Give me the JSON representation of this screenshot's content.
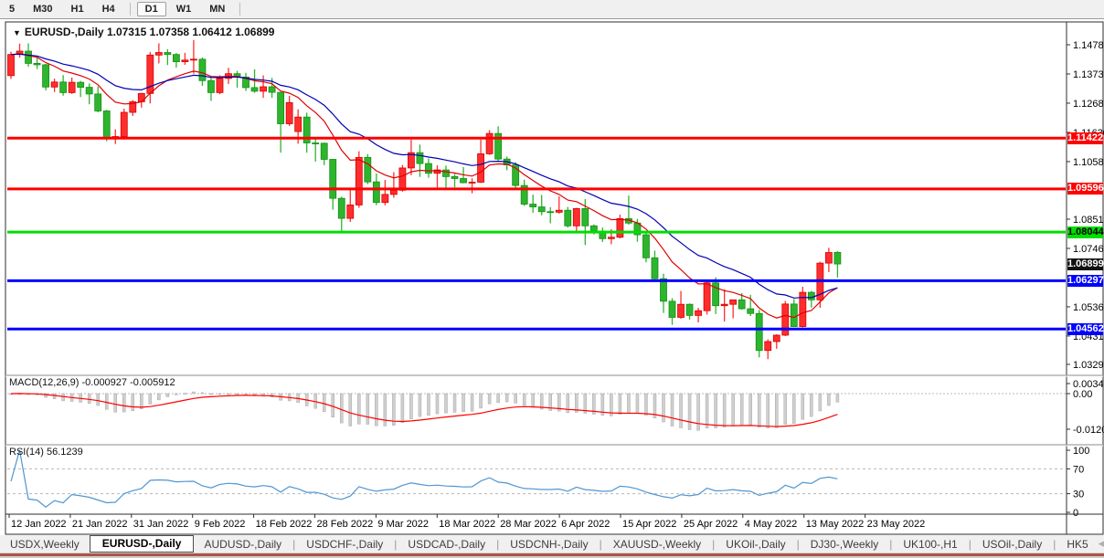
{
  "toolbar": {
    "timeframes": [
      "5",
      "M30",
      "H1",
      "H4",
      "D1",
      "W1",
      "MN"
    ],
    "active": "D1"
  },
  "chart": {
    "collapse_icon": "▼",
    "title_symbol": "EURUSD-,Daily",
    "title_ohlc": "1.07315 1.07358 1.06412 1.06899"
  },
  "chart_data": {
    "type": "candlestick",
    "symbol": "EURUSD-,Daily",
    "title": "EURUSD-,Daily",
    "current_ohlc": {
      "open": 1.07315,
      "high": 1.07358,
      "low": 1.06412,
      "close": 1.06899
    },
    "up_color": "#ff2e2e",
    "down_color": "#2eb52e",
    "y_axis_ticks": [
      1.1478,
      1.1373,
      1.1268,
      1.1163,
      1.1058,
      1.0851,
      1.0746,
      1.0536,
      1.0431,
      1.0329
    ],
    "x_axis_labels": [
      "12 Jan 2022",
      "21 Jan 2022",
      "31 Jan 2022",
      "9 Feb 2022",
      "18 Feb 2022",
      "28 Feb 2022",
      "9 Mar 2022",
      "18 Mar 2022",
      "28 Mar 2022",
      "6 Apr 2022",
      "15 Apr 2022",
      "25 Apr 2022",
      "4 May 2022",
      "13 May 2022",
      "23 May 2022"
    ],
    "levels": [
      {
        "price": 1.11422,
        "color": "#ff0000",
        "badge_bg": "#ff0000",
        "badge_fg": "#ffffff"
      },
      {
        "price": 1.09596,
        "color": "#ff0000",
        "badge_bg": "#ff0000",
        "badge_fg": "#ffffff"
      },
      {
        "price": 1.08044,
        "color": "#00dd00",
        "badge_bg": "#00dd00",
        "badge_fg": "#000000"
      },
      {
        "price": 1.06297,
        "color": "#0000ff",
        "badge_bg": "#0000ff",
        "badge_fg": "#ffffff"
      },
      {
        "price": 1.04562,
        "color": "#0000ff",
        "badge_bg": "#0000ff",
        "badge_fg": "#ffffff"
      }
    ],
    "current_price_badge": {
      "price": 1.06899,
      "badge_bg": "#111111",
      "badge_fg": "#ffffff"
    },
    "moving_averages": [
      {
        "period": 10,
        "color": "#e00000"
      },
      {
        "period": 20,
        "color": "#0000b4"
      }
    ],
    "macd": {
      "label": "MACD(12,26,9)",
      "values": "-0.000927 -0.005912",
      "fast": 12,
      "slow": 26,
      "signal_period": 9,
      "axis_ticks": [
        0.003408,
        0,
        -0.012058
      ],
      "bar_color": "#cfcfcf",
      "signal_color": "#ff0000"
    },
    "rsi": {
      "label": "RSI(14)",
      "value": "56.1239",
      "period": 14,
      "axis_ticks": [
        100,
        70,
        30,
        0
      ],
      "guide_levels": [
        70,
        30
      ],
      "line_color": "#4f96d2"
    },
    "candles": [
      [
        1.1367,
        1.1453,
        1.1355,
        1.1443
      ],
      [
        1.1443,
        1.1482,
        1.1432,
        1.1455
      ],
      [
        1.1455,
        1.1483,
        1.1399,
        1.1411
      ],
      [
        1.1411,
        1.1435,
        1.1391,
        1.1406
      ],
      [
        1.1406,
        1.1409,
        1.1314,
        1.1326
      ],
      [
        1.1326,
        1.1356,
        1.1308,
        1.1344
      ],
      [
        1.1344,
        1.1369,
        1.1295,
        1.1306
      ],
      [
        1.1306,
        1.136,
        1.1301,
        1.1343
      ],
      [
        1.1343,
        1.1348,
        1.129,
        1.1325
      ],
      [
        1.1325,
        1.1339,
        1.1264,
        1.1301
      ],
      [
        1.1301,
        1.1328,
        1.1235,
        1.124
      ],
      [
        1.124,
        1.1244,
        1.1131,
        1.1144
      ],
      [
        1.1144,
        1.1174,
        1.1121,
        1.1148
      ],
      [
        1.1148,
        1.1248,
        1.1144,
        1.1235
      ],
      [
        1.1235,
        1.1279,
        1.1222,
        1.1273
      ],
      [
        1.1273,
        1.1305,
        1.1252,
        1.1303
      ],
      [
        1.1303,
        1.1452,
        1.1267,
        1.1441
      ],
      [
        1.1441,
        1.1483,
        1.1411,
        1.145
      ],
      [
        1.145,
        1.1462,
        1.1405,
        1.1443
      ],
      [
        1.1443,
        1.1448,
        1.1396,
        1.1417
      ],
      [
        1.1417,
        1.1449,
        1.1406,
        1.1423
      ],
      [
        1.1423,
        1.1495,
        1.1374,
        1.1426
      ],
      [
        1.1426,
        1.1432,
        1.133,
        1.1349
      ],
      [
        1.1349,
        1.1366,
        1.1276,
        1.1306
      ],
      [
        1.1306,
        1.1368,
        1.13,
        1.1357
      ],
      [
        1.1357,
        1.1395,
        1.1337,
        1.1374
      ],
      [
        1.1374,
        1.1384,
        1.1324,
        1.1362
      ],
      [
        1.1362,
        1.1377,
        1.1312,
        1.1324
      ],
      [
        1.1324,
        1.139,
        1.1305,
        1.1311
      ],
      [
        1.1311,
        1.1368,
        1.1287,
        1.1327
      ],
      [
        1.1327,
        1.1359,
        1.1287,
        1.1307
      ],
      [
        1.1307,
        1.1307,
        1.109,
        1.1194
      ],
      [
        1.1194,
        1.1294,
        1.1186,
        1.127
      ],
      [
        1.1166,
        1.1246,
        1.1122,
        1.1218
      ],
      [
        1.1218,
        1.1234,
        1.109,
        1.1125
      ],
      [
        1.1125,
        1.114,
        1.1058,
        1.1124
      ],
      [
        1.1124,
        1.1126,
        1.1045,
        1.1066
      ],
      [
        1.1066,
        1.1068,
        1.0885,
        1.0926
      ],
      [
        1.0926,
        1.0932,
        1.0806,
        1.0854
      ],
      [
        1.0854,
        1.0957,
        1.0841,
        1.0902
      ],
      [
        1.0902,
        1.1095,
        1.0892,
        1.1073
      ],
      [
        1.1073,
        1.1085,
        1.0977,
        1.0985
      ],
      [
        1.0985,
        1.1015,
        1.0901,
        1.0911
      ],
      [
        1.0911,
        1.0992,
        1.0901,
        1.094
      ],
      [
        1.094,
        1.102,
        1.0928,
        1.0955
      ],
      [
        1.0955,
        1.1046,
        1.095,
        1.1035
      ],
      [
        1.1035,
        1.1137,
        1.1009,
        1.109
      ],
      [
        1.109,
        1.1119,
        1.1003,
        1.1051
      ],
      [
        1.1051,
        1.1069,
        1.1,
        1.1016
      ],
      [
        1.1016,
        1.1045,
        1.0961,
        1.1028
      ],
      [
        1.1028,
        1.1044,
        1.0963,
        1.1004
      ],
      [
        1.1004,
        1.1014,
        1.0965,
        1.0997
      ],
      [
        1.0997,
        1.1038,
        1.098,
        1.0982
      ],
      [
        1.0982,
        1.0998,
        1.0944,
        1.0984
      ],
      [
        1.0984,
        1.1137,
        1.0981,
        1.1086
      ],
      [
        1.1086,
        1.1171,
        1.1082,
        1.1159
      ],
      [
        1.1159,
        1.1185,
        1.106,
        1.1067
      ],
      [
        1.1067,
        1.1076,
        1.1027,
        1.1046
      ],
      [
        1.1046,
        1.1055,
        1.096,
        1.0972
      ],
      [
        1.0972,
        1.0993,
        1.0899,
        1.0905
      ],
      [
        1.0905,
        1.0939,
        1.0874,
        1.0895
      ],
      [
        1.0895,
        1.0938,
        1.0865,
        1.0878
      ],
      [
        1.0878,
        1.0894,
        1.0836,
        1.0876
      ],
      [
        1.0876,
        1.0933,
        1.0871,
        1.0883
      ],
      [
        1.0883,
        1.0895,
        1.0821,
        1.0827
      ],
      [
        1.0827,
        1.0892,
        1.0808,
        1.0889
      ],
      [
        1.0889,
        1.0923,
        1.0758,
        1.0827
      ],
      [
        1.0827,
        1.0832,
        1.0796,
        1.0808
      ],
      [
        1.0808,
        1.0821,
        1.0769,
        1.0781
      ],
      [
        1.0781,
        1.0815,
        1.0761,
        1.0786
      ],
      [
        1.0786,
        1.0867,
        1.0782,
        1.0853
      ],
      [
        1.0853,
        1.0936,
        1.0831,
        1.0837
      ],
      [
        1.0837,
        1.0852,
        1.077,
        1.0795
      ],
      [
        1.0795,
        1.0804,
        1.0696,
        1.0712
      ],
      [
        1.0712,
        1.0738,
        1.0635,
        1.0637
      ],
      [
        1.0637,
        1.0655,
        1.0514,
        1.0556
      ],
      [
        1.0556,
        1.0567,
        1.0471,
        1.0498
      ],
      [
        1.0498,
        1.0593,
        1.0493,
        1.0545
      ],
      [
        1.0545,
        1.0548,
        1.049,
        1.0505
      ],
      [
        1.0505,
        1.0532,
        1.048,
        1.0522
      ],
      [
        1.0522,
        1.0632,
        1.0508,
        1.0622
      ],
      [
        1.0622,
        1.0642,
        1.051,
        1.054
      ],
      [
        1.054,
        1.0599,
        1.0483,
        1.0545
      ],
      [
        1.0545,
        1.0561,
        1.0495,
        1.0561
      ],
      [
        1.0561,
        1.0585,
        1.0526,
        1.0529
      ],
      [
        1.0529,
        1.0579,
        1.0503,
        1.0512
      ],
      [
        1.0512,
        1.0525,
        1.0354,
        1.0379
      ],
      [
        1.0379,
        1.0419,
        1.0348,
        1.0411
      ],
      [
        1.0411,
        1.0437,
        1.0385,
        1.0434
      ],
      [
        1.0434,
        1.0557,
        1.0431,
        1.0546
      ],
      [
        1.0546,
        1.0564,
        1.0464,
        1.0465
      ],
      [
        1.0465,
        1.0608,
        1.0462,
        1.0588
      ],
      [
        1.0588,
        1.0593,
        1.0533,
        1.0561
      ],
      [
        1.0561,
        1.0698,
        1.0532,
        1.0693
      ],
      [
        1.0693,
        1.0748,
        1.0661,
        1.0731
      ],
      [
        1.07315,
        1.07358,
        1.06412,
        1.06899
      ]
    ]
  },
  "tabs": {
    "items": [
      "USDX,Weekly",
      "EURUSD-,Daily",
      "AUDUSD-,Daily",
      "USDCHF-,Daily",
      "USDCAD-,Daily",
      "USDCNH-,Daily",
      "XAUUSD-,Weekly",
      "UKOil-,Daily",
      "DJ30-,Weekly",
      "UK100-,H1",
      "USOil-,Daily",
      "HK5"
    ],
    "active_index": 1,
    "scroll_left": "◀",
    "scroll_right": "▶"
  }
}
